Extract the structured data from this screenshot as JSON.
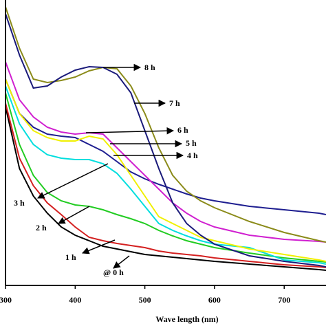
{
  "chart_data": {
    "type": "line",
    "x_label": "Wave length (nm)",
    "x": [
      300,
      320,
      340,
      360,
      380,
      400,
      420,
      440,
      460,
      480,
      500,
      520,
      540,
      560,
      580,
      600,
      650,
      700,
      750,
      760
    ],
    "xlim": [
      300,
      760
    ],
    "xticks": [
      300,
      400,
      500,
      600,
      700
    ],
    "ylim": [
      0,
      4.15
    ],
    "series": [
      {
        "name": "@ 0 h",
        "color": "#000000",
        "values": [
          2.6,
          1.7,
          1.3,
          1.05,
          0.85,
          0.73,
          0.65,
          0.57,
          0.53,
          0.49,
          0.45,
          0.43,
          0.41,
          0.39,
          0.37,
          0.35,
          0.31,
          0.27,
          0.23,
          0.22
        ]
      },
      {
        "name": "1 h",
        "color": "#d42020",
        "values": [
          2.65,
          1.85,
          1.45,
          1.2,
          1.03,
          0.85,
          0.7,
          0.65,
          0.61,
          0.58,
          0.55,
          0.5,
          0.47,
          0.45,
          0.43,
          0.4,
          0.35,
          0.3,
          0.27,
          0.26
        ]
      },
      {
        "name": "2 h",
        "color": "#22cc22",
        "values": [
          2.8,
          2.05,
          1.6,
          1.35,
          1.23,
          1.17,
          1.15,
          1.1,
          1.03,
          0.97,
          0.9,
          0.8,
          0.72,
          0.65,
          0.6,
          0.55,
          0.47,
          0.4,
          0.35,
          0.34
        ]
      },
      {
        "name": "3 h",
        "color": "#00dede",
        "values": [
          2.9,
          2.35,
          2.05,
          1.9,
          1.85,
          1.83,
          1.83,
          1.77,
          1.63,
          1.4,
          1.15,
          0.9,
          0.8,
          0.72,
          0.65,
          0.6,
          0.55,
          0.37,
          0.33,
          0.31
        ]
      },
      {
        "name": "4 h",
        "color": "#1e1e90",
        "values": [
          3.0,
          2.5,
          2.3,
          2.2,
          2.17,
          2.15,
          2.05,
          1.95,
          1.8,
          1.65,
          1.55,
          1.47,
          1.4,
          1.33,
          1.27,
          1.23,
          1.15,
          1.1,
          1.05,
          1.03
        ]
      },
      {
        "name": "5 h",
        "color": "#f0f000",
        "values": [
          3.0,
          2.5,
          2.25,
          2.15,
          2.1,
          2.1,
          2.17,
          2.13,
          1.9,
          1.6,
          1.3,
          1.0,
          0.9,
          0.8,
          0.7,
          0.65,
          0.53,
          0.45,
          0.37,
          0.35
        ]
      },
      {
        "name": "6 h",
        "color": "#d020d0",
        "values": [
          3.25,
          2.7,
          2.45,
          2.3,
          2.23,
          2.2,
          2.22,
          2.2,
          2.0,
          1.8,
          1.6,
          1.4,
          1.2,
          1.05,
          0.93,
          0.85,
          0.73,
          0.67,
          0.64,
          0.63
        ]
      },
      {
        "name": "7 h",
        "color": "#8b8b1a",
        "values": [
          4.05,
          3.45,
          3.0,
          2.95,
          2.98,
          3.03,
          3.12,
          3.17,
          3.15,
          2.9,
          2.5,
          2.0,
          1.6,
          1.37,
          1.23,
          1.13,
          0.93,
          0.77,
          0.65,
          0.63
        ]
      },
      {
        "name": "8 h",
        "color": "#1a1a7a",
        "values": [
          3.95,
          3.35,
          2.87,
          2.9,
          3.03,
          3.13,
          3.18,
          3.17,
          3.07,
          2.8,
          2.25,
          1.7,
          1.2,
          0.9,
          0.73,
          0.6,
          0.43,
          0.35,
          0.29,
          0.27
        ]
      }
    ]
  }
}
